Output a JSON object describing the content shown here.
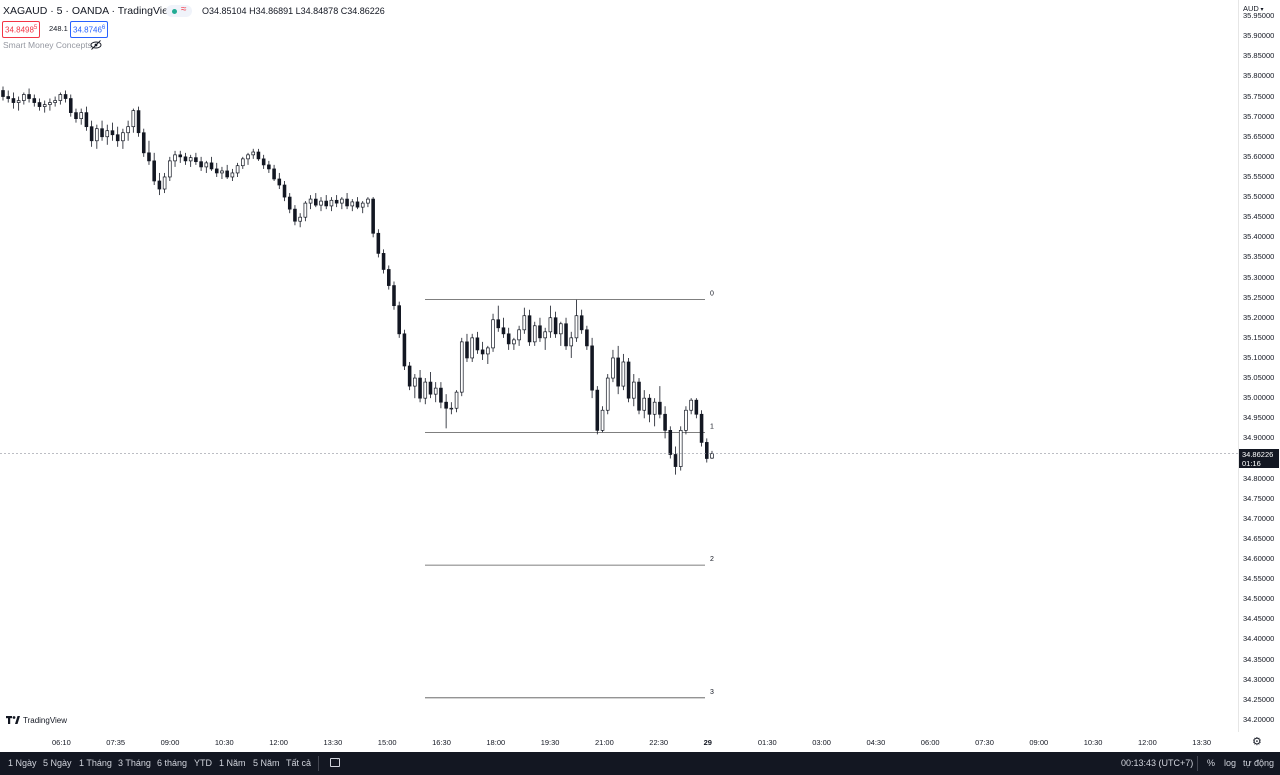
{
  "header": {
    "symbol": "XAGAUD · 5 · OANDA · TradingView",
    "ohlc": {
      "o_label": "O",
      "o_value": "34.85104",
      "h_label": "H",
      "h_value": "34.86891",
      "l_label": "L",
      "l_value": "34.84878",
      "c_label": "C",
      "c_value": "34.86226"
    },
    "sell_price": "34.8498",
    "sell_suffix": "5",
    "spread": "248.1",
    "buy_price": "34.8746",
    "buy_suffix": "6",
    "indicator_name": "Smart Money Concepts",
    "currency": "AUD",
    "colors": {
      "sell": "#f23645",
      "buy": "#2962ff",
      "live_dot": "#22ab94"
    }
  },
  "price_axis": {
    "ticks": [
      "35.95000",
      "35.90000",
      "35.85000",
      "35.80000",
      "35.75000",
      "35.70000",
      "35.65000",
      "35.60000",
      "35.55000",
      "35.50000",
      "35.45000",
      "35.40000",
      "35.35000",
      "35.30000",
      "35.25000",
      "35.20000",
      "35.15000",
      "35.10000",
      "35.05000",
      "35.00000",
      "34.95000",
      "34.90000",
      "34.80000",
      "34.75000",
      "34.70000",
      "34.65000",
      "34.60000",
      "34.55000",
      "34.50000",
      "34.45000",
      "34.40000",
      "34.35000",
      "34.30000",
      "34.25000",
      "34.20000"
    ],
    "current_price": "34.86226",
    "countdown": "01:16"
  },
  "time_axis": {
    "labels": [
      "06:10",
      "07:35",
      "09:00",
      "10:30",
      "12:00",
      "13:30",
      "15:00",
      "16:30",
      "18:00",
      "19:30",
      "21:00",
      "22:30",
      "29",
      "01:30",
      "03:00",
      "04:30",
      "06:00",
      "07:30",
      "09:00",
      "10:30",
      "12:00",
      "13:30"
    ]
  },
  "fib_levels": [
    {
      "label": "0",
      "price": 35.245
    },
    {
      "label": "1",
      "price": 34.915
    },
    {
      "label": "2",
      "price": 34.585
    },
    {
      "label": "3",
      "price": 34.255
    }
  ],
  "chart_data": {
    "type": "candlestick",
    "symbol": "XAGAUD",
    "interval": "5",
    "ylim": [
      34.17,
      35.99
    ],
    "candles": [
      [
        35.765,
        35.775,
        35.74,
        35.75
      ],
      [
        35.75,
        35.765,
        35.735,
        35.745
      ],
      [
        35.745,
        35.76,
        35.72,
        35.735
      ],
      [
        35.735,
        35.75,
        35.715,
        35.74
      ],
      [
        35.74,
        35.76,
        35.73,
        35.755
      ],
      [
        35.755,
        35.77,
        35.735,
        35.745
      ],
      [
        35.745,
        35.755,
        35.725,
        35.735
      ],
      [
        35.735,
        35.745,
        35.715,
        35.725
      ],
      [
        35.725,
        35.74,
        35.71,
        35.73
      ],
      [
        35.73,
        35.745,
        35.715,
        35.735
      ],
      [
        35.735,
        35.75,
        35.725,
        35.74
      ],
      [
        35.74,
        35.76,
        35.73,
        35.755
      ],
      [
        35.755,
        35.765,
        35.735,
        35.745
      ],
      [
        35.745,
        35.755,
        35.7,
        35.71
      ],
      [
        35.71,
        35.72,
        35.685,
        35.695
      ],
      [
        35.695,
        35.72,
        35.68,
        35.71
      ],
      [
        35.71,
        35.725,
        35.665,
        35.675
      ],
      [
        35.675,
        35.69,
        35.625,
        35.64
      ],
      [
        35.64,
        35.68,
        35.62,
        35.67
      ],
      [
        35.67,
        35.69,
        35.64,
        35.65
      ],
      [
        35.65,
        35.68,
        35.63,
        35.665
      ],
      [
        35.665,
        35.685,
        35.64,
        35.655
      ],
      [
        35.655,
        35.675,
        35.625,
        35.64
      ],
      [
        35.64,
        35.67,
        35.62,
        35.66
      ],
      [
        35.66,
        35.69,
        35.64,
        35.675
      ],
      [
        35.675,
        35.72,
        35.66,
        35.715
      ],
      [
        35.715,
        35.725,
        35.65,
        35.66
      ],
      [
        35.66,
        35.67,
        35.6,
        35.61
      ],
      [
        35.61,
        35.64,
        35.58,
        35.59
      ],
      [
        35.59,
        35.61,
        35.53,
        35.54
      ],
      [
        35.54,
        35.56,
        35.505,
        35.52
      ],
      [
        35.52,
        35.56,
        35.51,
        35.55
      ],
      [
        35.55,
        35.6,
        35.54,
        35.59
      ],
      [
        35.59,
        35.615,
        35.575,
        35.605
      ],
      [
        35.605,
        35.615,
        35.585,
        35.6
      ],
      [
        35.6,
        35.61,
        35.58,
        35.59
      ],
      [
        35.59,
        35.605,
        35.575,
        35.598
      ],
      [
        35.598,
        35.61,
        35.58,
        35.588
      ],
      [
        35.588,
        35.6,
        35.565,
        35.575
      ],
      [
        35.575,
        35.59,
        35.56,
        35.585
      ],
      [
        35.585,
        35.6,
        35.565,
        35.57
      ],
      [
        35.57,
        35.585,
        35.55,
        35.56
      ],
      [
        35.56,
        35.575,
        35.545,
        35.565
      ],
      [
        35.565,
        35.58,
        35.545,
        35.55
      ],
      [
        35.55,
        35.57,
        35.54,
        35.56
      ],
      [
        35.56,
        35.585,
        35.55,
        35.578
      ],
      [
        35.578,
        35.6,
        35.57,
        35.595
      ],
      [
        35.595,
        35.61,
        35.58,
        35.605
      ],
      [
        35.605,
        35.62,
        35.595,
        35.612
      ],
      [
        35.612,
        35.62,
        35.59,
        35.595
      ],
      [
        35.595,
        35.605,
        35.57,
        35.58
      ],
      [
        35.58,
        35.59,
        35.56,
        35.57
      ],
      [
        35.57,
        35.58,
        35.54,
        35.545
      ],
      [
        35.545,
        35.56,
        35.52,
        35.53
      ],
      [
        35.53,
        35.54,
        35.49,
        35.5
      ],
      [
        35.5,
        35.51,
        35.46,
        35.47
      ],
      [
        35.47,
        35.48,
        35.43,
        35.44
      ],
      [
        35.44,
        35.46,
        35.425,
        35.45
      ],
      [
        35.45,
        35.49,
        35.44,
        35.485
      ],
      [
        35.485,
        35.505,
        35.47,
        35.495
      ],
      [
        35.495,
        35.51,
        35.475,
        35.48
      ],
      [
        35.48,
        35.5,
        35.465,
        35.49
      ],
      [
        35.49,
        35.505,
        35.47,
        35.478
      ],
      [
        35.478,
        35.5,
        35.465,
        35.492
      ],
      [
        35.492,
        35.505,
        35.475,
        35.485
      ],
      [
        35.485,
        35.5,
        35.47,
        35.495
      ],
      [
        35.495,
        35.51,
        35.47,
        35.478
      ],
      [
        35.478,
        35.495,
        35.465,
        35.488
      ],
      [
        35.488,
        35.5,
        35.47,
        35.475
      ],
      [
        35.475,
        35.49,
        35.46,
        35.485
      ],
      [
        35.485,
        35.5,
        35.475,
        35.495
      ],
      [
        35.495,
        35.5,
        35.4,
        35.41
      ],
      [
        35.41,
        35.42,
        35.35,
        35.36
      ],
      [
        35.36,
        35.37,
        35.31,
        35.32
      ],
      [
        35.32,
        35.33,
        35.27,
        35.28
      ],
      [
        35.28,
        35.29,
        35.22,
        35.23
      ],
      [
        35.23,
        35.24,
        35.15,
        35.16
      ],
      [
        35.16,
        35.17,
        35.07,
        35.08
      ],
      [
        35.08,
        35.09,
        35.02,
        35.03
      ],
      [
        35.03,
        35.06,
        35.0,
        35.05
      ],
      [
        35.05,
        35.07,
        34.99,
        35.0
      ],
      [
        35.0,
        35.05,
        34.985,
        35.04
      ],
      [
        35.04,
        35.065,
        35.0,
        35.01
      ],
      [
        35.01,
        35.04,
        34.99,
        35.025
      ],
      [
        35.025,
        35.04,
        34.975,
        34.99
      ],
      [
        34.99,
        35.01,
        34.925,
        34.975
      ],
      [
        34.975,
        34.99,
        34.96,
        34.975
      ],
      [
        34.975,
        35.02,
        34.965,
        35.015
      ],
      [
        35.015,
        35.15,
        35.005,
        35.14
      ],
      [
        35.14,
        35.16,
        35.09,
        35.1
      ],
      [
        35.1,
        35.16,
        35.09,
        35.15
      ],
      [
        35.15,
        35.165,
        35.11,
        35.12
      ],
      [
        35.12,
        35.14,
        35.095,
        35.11
      ],
      [
        35.11,
        35.13,
        35.085,
        35.125
      ],
      [
        35.125,
        35.21,
        35.115,
        35.195
      ],
      [
        35.195,
        35.23,
        35.165,
        35.175
      ],
      [
        35.175,
        35.2,
        35.15,
        35.16
      ],
      [
        35.16,
        35.175,
        35.12,
        35.135
      ],
      [
        35.135,
        35.15,
        35.12,
        35.145
      ],
      [
        35.145,
        35.18,
        35.13,
        35.17
      ],
      [
        35.17,
        35.225,
        35.16,
        35.205
      ],
      [
        35.205,
        35.22,
        35.13,
        35.14
      ],
      [
        35.14,
        35.19,
        35.13,
        35.18
      ],
      [
        35.18,
        35.2,
        35.14,
        35.15
      ],
      [
        35.15,
        35.175,
        35.12,
        35.165
      ],
      [
        35.165,
        35.23,
        35.15,
        35.2
      ],
      [
        35.2,
        35.215,
        35.15,
        35.16
      ],
      [
        35.16,
        35.19,
        35.13,
        35.185
      ],
      [
        35.185,
        35.2,
        35.12,
        35.13
      ],
      [
        35.13,
        35.165,
        35.1,
        35.15
      ],
      [
        35.15,
        35.245,
        35.14,
        35.205
      ],
      [
        35.205,
        35.22,
        35.16,
        35.17
      ],
      [
        35.17,
        35.18,
        35.12,
        35.13
      ],
      [
        35.13,
        35.15,
        35.0,
        35.02
      ],
      [
        35.02,
        35.03,
        34.91,
        34.92
      ],
      [
        34.92,
        34.98,
        34.915,
        34.97
      ],
      [
        34.97,
        35.06,
        34.96,
        35.05
      ],
      [
        35.05,
        35.12,
        35.04,
        35.1
      ],
      [
        35.1,
        35.13,
        35.01,
        35.03
      ],
      [
        35.03,
        35.11,
        35.02,
        35.09
      ],
      [
        35.09,
        35.1,
        34.99,
        35.0
      ],
      [
        35.0,
        35.06,
        34.98,
        35.04
      ],
      [
        35.04,
        35.05,
        34.96,
        34.97
      ],
      [
        34.97,
        35.02,
        34.95,
        35.0
      ],
      [
        35.0,
        35.01,
        34.94,
        34.96
      ],
      [
        34.96,
        35.0,
        34.93,
        34.99
      ],
      [
        34.99,
        35.03,
        34.95,
        34.96
      ],
      [
        34.96,
        34.98,
        34.9,
        34.92
      ],
      [
        34.92,
        34.93,
        34.85,
        34.86
      ],
      [
        34.86,
        34.88,
        34.81,
        34.83
      ],
      [
        34.83,
        34.93,
        34.82,
        34.92
      ],
      [
        34.92,
        34.98,
        34.91,
        34.97
      ],
      [
        34.97,
        35.0,
        34.96,
        34.995
      ],
      [
        34.995,
        35.0,
        34.95,
        34.96
      ],
      [
        34.96,
        34.97,
        34.88,
        34.89
      ],
      [
        34.89,
        34.9,
        34.84,
        34.85
      ],
      [
        34.851,
        34.869,
        34.849,
        34.862
      ]
    ]
  },
  "bottom_bar": {
    "ranges": [
      "1 Ngày",
      "5 Ngày",
      "1 Tháng",
      "3 Tháng",
      "6 tháng",
      "YTD",
      "1 Năm",
      "5 Năm",
      "Tất cả"
    ],
    "clock": "00:13:43 (UTC+7)",
    "percent": "%",
    "log": "log",
    "auto": "tự động"
  },
  "watermark": "TradingView"
}
